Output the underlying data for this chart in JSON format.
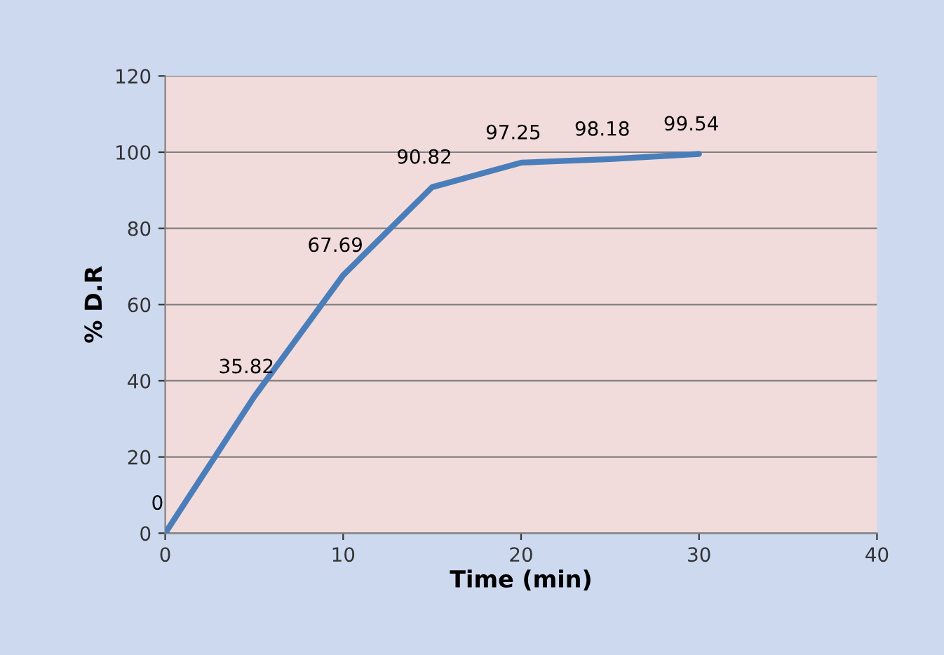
{
  "chart_data": {
    "type": "line",
    "xlabel": "Time (min)",
    "ylabel": "% D.R",
    "x": [
      0,
      5,
      10,
      15,
      20,
      25,
      30
    ],
    "series": [
      {
        "color": "#4a7ebb",
        "values": [
          0,
          35.82,
          67.69,
          90.82,
          97.25,
          98.18,
          99.54
        ]
      }
    ],
    "xlim": [
      0,
      40
    ],
    "xticks": [
      0,
      10,
      20,
      30,
      40
    ],
    "ylim": [
      0,
      120
    ],
    "yticks": [
      0,
      20,
      40,
      60,
      80,
      100,
      120
    ],
    "grid": "y",
    "legend": false,
    "marker": "none",
    "line_style": "solid",
    "data_labels": true
  }
}
